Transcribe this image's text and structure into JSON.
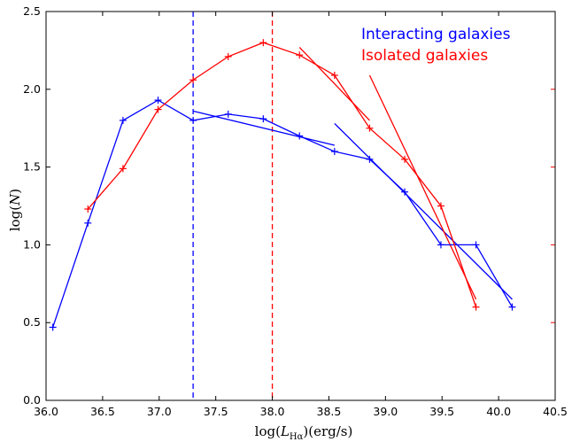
{
  "chart_data": {
    "type": "line",
    "xlabel": "log(L_Hα)(erg/s)",
    "ylabel": "log(N)",
    "xlim": [
      36.0,
      40.5
    ],
    "ylim": [
      0.0,
      2.5
    ],
    "x_ticks": [
      "36.0",
      "36.5",
      "37.0",
      "37.5",
      "38.0",
      "38.5",
      "39.0",
      "39.5",
      "40.0",
      "40.5"
    ],
    "y_ticks": [
      "0.0",
      "0.5",
      "1.0",
      "1.5",
      "2.0",
      "2.5"
    ],
    "grid": false,
    "legend_position": "top-right",
    "series": [
      {
        "name": "Interacting galaxies",
        "color": "#0000ff",
        "x": [
          36.06,
          36.37,
          36.68,
          36.99,
          37.3,
          37.61,
          37.92,
          38.24,
          38.55,
          38.86,
          39.17,
          39.49,
          39.8,
          40.12
        ],
        "y": [
          0.47,
          1.14,
          1.8,
          1.93,
          1.8,
          1.84,
          1.81,
          1.7,
          1.6,
          1.55,
          1.34,
          1.0,
          1.0,
          0.6
        ]
      },
      {
        "name": "Isolated galaxies",
        "color": "#ff0000",
        "x": [
          36.37,
          36.68,
          36.99,
          37.3,
          37.61,
          37.92,
          38.24,
          38.55,
          38.86,
          39.17,
          39.49,
          39.8
        ],
        "y": [
          1.23,
          1.49,
          1.87,
          2.06,
          2.21,
          2.3,
          2.22,
          2.09,
          1.75,
          1.55,
          1.25,
          0.6
        ]
      }
    ],
    "fit_lines": [
      {
        "color": "#0000ff",
        "x": [
          37.3,
          38.55
        ],
        "y": [
          1.86,
          1.64
        ]
      },
      {
        "color": "#0000ff",
        "x": [
          38.55,
          40.12
        ],
        "y": [
          1.78,
          0.65
        ]
      },
      {
        "color": "#ff0000",
        "x": [
          38.24,
          38.86
        ],
        "y": [
          2.27,
          1.8
        ]
      },
      {
        "color": "#ff0000",
        "x": [
          38.86,
          39.8
        ],
        "y": [
          2.09,
          0.65
        ]
      }
    ],
    "vlines": [
      {
        "x": 37.3,
        "color": "#0000ff",
        "style": "dashed"
      },
      {
        "x": 38.0,
        "color": "#ff0000",
        "style": "dashed"
      }
    ]
  }
}
